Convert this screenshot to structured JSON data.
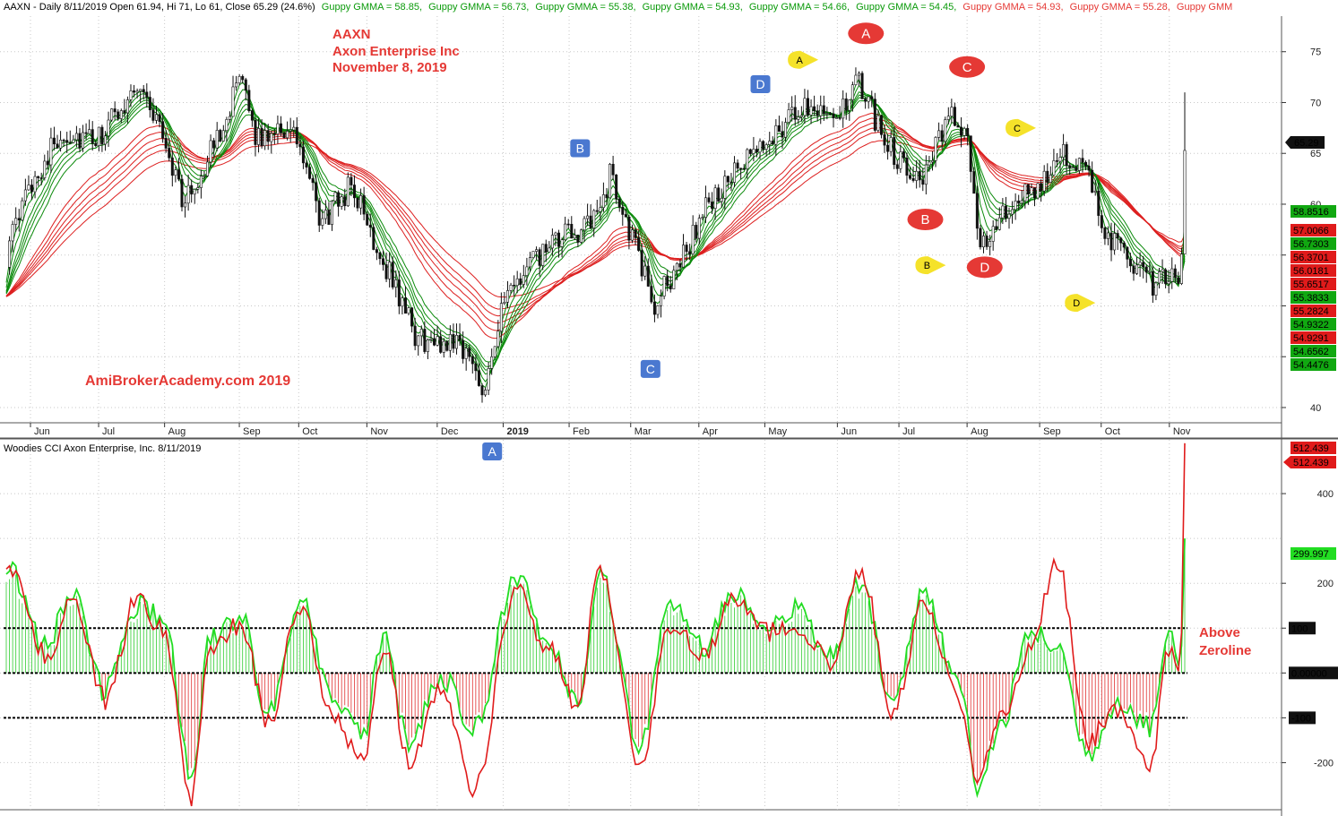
{
  "upper_header": {
    "ticker_line": "AAXN - Daily 8/11/2019 Open 61.94, Hi 71, Lo 61, Close 65.29 (24.6%)",
    "gmma_entries": [
      {
        "text": "Guppy GMMA = 58.85,",
        "color": "#0a9a0a"
      },
      {
        "text": "Guppy GMMA = 56.73,",
        "color": "#0a9a0a"
      },
      {
        "text": "Guppy GMMA = 55.38,",
        "color": "#0a9a0a"
      },
      {
        "text": "Guppy GMMA = 54.93,",
        "color": "#0a9a0a"
      },
      {
        "text": "Guppy GMMA = 54.66,",
        "color": "#0a9a0a"
      },
      {
        "text": "Guppy GMMA = 54.45,",
        "color": "#0a9a0a"
      },
      {
        "text": "Guppy GMMA = 54.93,",
        "color": "#e53935"
      },
      {
        "text": "Guppy GMMA = 55.28,",
        "color": "#e53935"
      },
      {
        "text": "Guppy GMM",
        "color": "#e53935"
      }
    ]
  },
  "annotations": {
    "symbol": "AAXN",
    "company": "Axon Enterprise Inc",
    "date": "November 8, 2019",
    "watermark": "AmiBrokerAcademy.com   2019",
    "above_zeroline_1": "Above",
    "above_zeroline_2": "Zeroline"
  },
  "price_badges": [
    {
      "text": "65.29",
      "bg": "#111111",
      "fg": "#ffffff"
    },
    {
      "text": "58.8516",
      "bg": "#11a811",
      "fg": "#ffffff"
    },
    {
      "text": "57.0066",
      "bg": "#e01b1b",
      "fg": "#ffffff"
    },
    {
      "text": "56.7303",
      "bg": "#11a811",
      "fg": "#ffffff"
    },
    {
      "text": "56.3701",
      "bg": "#e01b1b",
      "fg": "#ffffff"
    },
    {
      "text": "56.0181",
      "bg": "#e01b1b",
      "fg": "#ffffff"
    },
    {
      "text": "55.6517",
      "bg": "#e01b1b",
      "fg": "#ffffff"
    },
    {
      "text": "55.3833",
      "bg": "#11a811",
      "fg": "#ffffff"
    },
    {
      "text": "55.2824",
      "bg": "#e01b1b",
      "fg": "#ffffff"
    },
    {
      "text": "54.9322",
      "bg": "#11a811",
      "fg": "#ffffff"
    },
    {
      "text": "54.9291",
      "bg": "#e01b1b",
      "fg": "#ffffff"
    },
    {
      "text": "54.6562",
      "bg": "#11a811",
      "fg": "#ffffff"
    },
    {
      "text": "54.4476",
      "bg": "#11a811",
      "fg": "#ffffff"
    }
  ],
  "lower_header": {
    "title": "Woodies CCI  Axon Enterprise, Inc. 8/11/2019"
  },
  "cci_badges": [
    {
      "text": "512.439",
      "bg": "#e01b1b",
      "fg": "#ffffff"
    },
    {
      "text": "512.439",
      "bg": "#e01b1b",
      "fg": "#ffffff"
    },
    {
      "text": "299.997",
      "bg": "#22dd22",
      "fg": "#000000"
    },
    {
      "text": "100",
      "bg": "#111111",
      "fg": "#ffffff"
    },
    {
      "text": "0.00000",
      "bg": "#111111",
      "fg": "#ffffff"
    },
    {
      "text": "-100",
      "bg": "#111111",
      "fg": "#ffffff"
    }
  ],
  "colors": {
    "grid": "#c8c8c8",
    "gmma_short": "#0b8a0b",
    "gmma_long": "#dd1f1f",
    "cci_line": "#22dd22",
    "turbo_line": "#e01b1b",
    "hist_up": "#2ecc2e",
    "hist_down": "#e03030",
    "wave_red": "#e53935",
    "wave_blue": "#4a78d0",
    "wave_yellow": "#f5e22a"
  },
  "chart_data": [
    {
      "type": "candlestick",
      "title": "AAXN - Daily 8/11/2019",
      "yticks": [
        40,
        45,
        50,
        55,
        60,
        65,
        70,
        75
      ],
      "ytick_labels": [
        "40",
        "",
        "",
        "",
        "60",
        "65",
        "70",
        "75"
      ],
      "ylim": [
        38.5,
        78.5
      ],
      "x_labels": [
        "Jun",
        "Jul",
        "Aug",
        "Sep",
        "Oct",
        "Nov",
        "Dec",
        "2019",
        "Feb",
        "Mar",
        "Apr",
        "May",
        "Jun",
        "Jul",
        "Aug",
        "Sep",
        "Oct",
        "Nov"
      ],
      "price_path": {
        "x": [
          "2018-05-21",
          "2018-06-01",
          "2018-06-15",
          "2018-07-01",
          "2018-07-20",
          "2018-07-31",
          "2018-08-10",
          "2018-08-20",
          "2018-09-04",
          "2018-09-13",
          "2018-09-21",
          "2018-10-01",
          "2018-10-11",
          "2018-10-25",
          "2018-11-05",
          "2018-11-12",
          "2018-11-23",
          "2018-12-03",
          "2018-12-12",
          "2018-12-24",
          "2019-01-02",
          "2019-01-14",
          "2019-01-31",
          "2019-02-12",
          "2019-02-20",
          "2019-03-04",
          "2019-03-12",
          "2019-03-25",
          "2019-04-05",
          "2019-04-18",
          "2019-05-01",
          "2019-05-10",
          "2019-05-22",
          "2019-06-05",
          "2019-06-13",
          "2019-06-21",
          "2019-07-02",
          "2019-07-12",
          "2019-07-26",
          "2019-08-02",
          "2019-08-07",
          "2019-08-23",
          "2019-09-05",
          "2019-09-12",
          "2019-09-26",
          "2019-10-04",
          "2019-10-15",
          "2019-10-25",
          "2019-11-01",
          "2019-11-05",
          "2019-11-07",
          "2019-11-08"
        ],
        "close": [
          55,
          62,
          67,
          66,
          72,
          67,
          60,
          64,
          72,
          66,
          68,
          66,
          58,
          62,
          56,
          53,
          47,
          46,
          47,
          42,
          50,
          54,
          57,
          58,
          63,
          55,
          50,
          55,
          60,
          63,
          66,
          68,
          70,
          69,
          72,
          68,
          64,
          63,
          69,
          65,
          56,
          60,
          62,
          66,
          62,
          57,
          54,
          52,
          53,
          52,
          56,
          65.29
        ]
      },
      "gmma_short_values_last": [
        58.8516,
        56.7303,
        55.3833,
        54.9322,
        54.6562,
        54.4476
      ],
      "gmma_long_values_last": [
        57.0066,
        56.3701,
        56.0181,
        55.6517,
        55.2824,
        54.9291
      ],
      "wave_markers": [
        {
          "label": "A",
          "style": "red",
          "date": "2019-06-16",
          "y": 76.8
        },
        {
          "label": "B",
          "style": "red",
          "date": "2019-07-13",
          "y": 58.5
        },
        {
          "label": "C",
          "style": "red",
          "date": "2019-08-01",
          "y": 73.5
        },
        {
          "label": "D",
          "style": "red",
          "date": "2019-08-09",
          "y": 53.8
        },
        {
          "label": "B",
          "style": "blue",
          "date": "2019-02-06",
          "y": 65.5
        },
        {
          "label": "C",
          "style": "blue",
          "date": "2019-03-10",
          "y": 43.8
        },
        {
          "label": "D",
          "style": "blue",
          "date": "2019-04-29",
          "y": 71.8
        },
        {
          "label": "A",
          "style": "yellow",
          "date": "2019-05-18",
          "y": 74.2
        },
        {
          "label": "B",
          "style": "yellow",
          "date": "2019-07-15",
          "y": 54.0
        },
        {
          "label": "C",
          "style": "yellow",
          "date": "2019-08-25",
          "y": 67.5
        },
        {
          "label": "D",
          "style": "yellow",
          "date": "2019-09-21",
          "y": 50.3
        }
      ]
    },
    {
      "type": "line",
      "title": "Woodies CCI  Axon Enterprise, Inc. 8/11/2019",
      "yticks": [
        -200,
        -100,
        0,
        100,
        200,
        400
      ],
      "ytick_labels": [
        "-200",
        "-100",
        "0.00000",
        "100",
        "200",
        "400"
      ],
      "ylim": [
        -305,
        520
      ],
      "reference_lines": [
        100,
        0,
        -100
      ],
      "series": [
        {
          "key": "cci",
          "color": "#22dd22",
          "x": [
            "2018-05-21",
            "2018-06-08",
            "2018-06-20",
            "2018-07-05",
            "2018-07-20",
            "2018-08-01",
            "2018-08-13",
            "2018-08-22",
            "2018-09-05",
            "2018-09-17",
            "2018-10-02",
            "2018-10-16",
            "2018-10-30",
            "2018-11-09",
            "2018-11-20",
            "2018-12-05",
            "2018-12-20",
            "2019-01-08",
            "2019-01-22",
            "2019-02-05",
            "2019-02-15",
            "2019-03-05",
            "2019-03-19",
            "2019-04-03",
            "2019-04-17",
            "2019-05-01",
            "2019-05-15",
            "2019-05-31",
            "2019-06-14",
            "2019-06-28",
            "2019-07-12",
            "2019-07-29",
            "2019-08-06",
            "2019-08-16",
            "2019-08-30",
            "2019-09-11",
            "2019-09-25",
            "2019-10-09",
            "2019-10-23",
            "2019-11-01",
            "2019-11-06",
            "2019-11-08"
          ],
          "values": [
            240,
            60,
            180,
            -40,
            150,
            120,
            -230,
            80,
            130,
            -90,
            160,
            -60,
            -140,
            90,
            -160,
            -10,
            -120,
            210,
            80,
            -60,
            230,
            -160,
            150,
            60,
            180,
            110,
            140,
            40,
            200,
            -60,
            170,
            -30,
            -260,
            -120,
            90,
            60,
            -180,
            -60,
            -120,
            90,
            10,
            299.997
          ]
        },
        {
          "key": "turbo",
          "color": "#e01b1b",
          "x": [
            "2018-05-21",
            "2018-06-08",
            "2018-06-20",
            "2018-07-05",
            "2018-07-20",
            "2018-08-01",
            "2018-08-13",
            "2018-08-22",
            "2018-09-05",
            "2018-09-17",
            "2018-10-02",
            "2018-10-16",
            "2018-10-30",
            "2018-11-09",
            "2018-11-20",
            "2018-12-05",
            "2018-12-20",
            "2019-01-08",
            "2019-01-22",
            "2019-02-05",
            "2019-02-15",
            "2019-03-05",
            "2019-03-19",
            "2019-04-03",
            "2019-04-17",
            "2019-05-01",
            "2019-05-15",
            "2019-05-31",
            "2019-06-14",
            "2019-06-28",
            "2019-07-12",
            "2019-07-29",
            "2019-08-06",
            "2019-08-16",
            "2019-08-30",
            "2019-09-11",
            "2019-09-25",
            "2019-10-09",
            "2019-10-23",
            "2019-11-01",
            "2019-11-06",
            "2019-11-08"
          ],
          "values": [
            250,
            40,
            150,
            -60,
            170,
            90,
            -280,
            50,
            110,
            -110,
            150,
            -90,
            -200,
            60,
            -190,
            -40,
            -260,
            190,
            60,
            -80,
            240,
            -200,
            110,
            40,
            170,
            90,
            110,
            20,
            230,
            -90,
            150,
            -60,
            -250,
            -100,
            60,
            240,
            -150,
            -80,
            -210,
            50,
            0,
            512.439
          ]
        }
      ]
    }
  ]
}
